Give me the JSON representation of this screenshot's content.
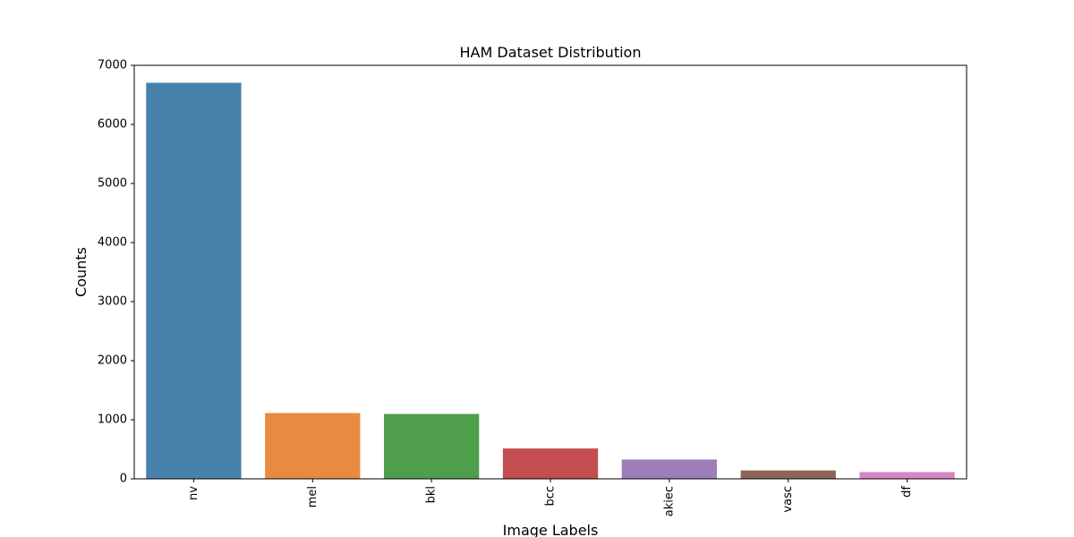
{
  "chart_data": {
    "type": "bar",
    "title": "HAM Dataset Distribution",
    "xlabel": "Image Labels",
    "ylabel": "Counts",
    "categories": [
      "nv",
      "mel",
      "bkl",
      "bcc",
      "akiec",
      "vasc",
      "df"
    ],
    "values": [
      6705,
      1113,
      1099,
      514,
      327,
      142,
      115
    ],
    "ylim": [
      0,
      7000
    ],
    "yticks": [
      0,
      1000,
      2000,
      3000,
      4000,
      5000,
      6000,
      7000
    ],
    "ytick_labels": [
      "0",
      "1000",
      "2000",
      "3000",
      "4000",
      "5000",
      "6000",
      "7000"
    ],
    "colors": [
      "#4682ab",
      "#e68b3f",
      "#4e9e4c",
      "#c44e4f",
      "#9d7eb9",
      "#8d6558",
      "#d985c3"
    ],
    "grid": false,
    "legend": "none"
  }
}
